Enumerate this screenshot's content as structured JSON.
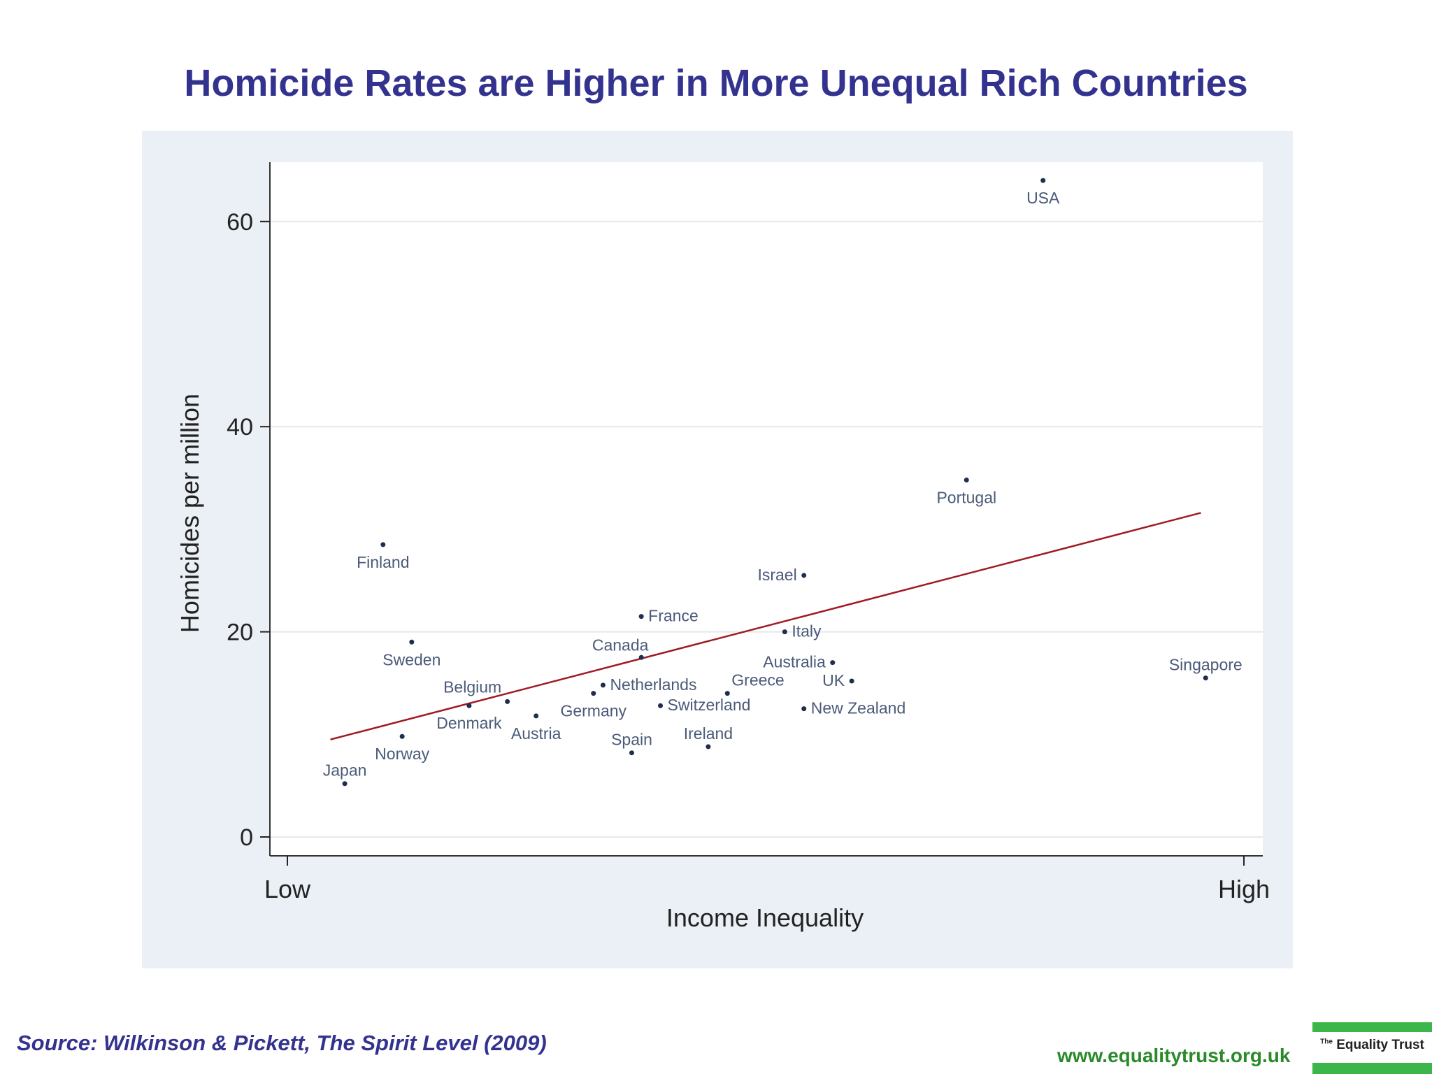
{
  "title": "Homicide Rates are Higher in More Unequal Rich Countries",
  "source": "Source: Wilkinson & Pickett, The Spirit Level (2009)",
  "footer": {
    "url": "www.equalitytrust.org.uk",
    "logo_prefix": "The",
    "logo_name": "Equality Trust"
  },
  "colors": {
    "title": "#33338f",
    "url": "#2a8a2a",
    "logo_green": "#3cb54a",
    "fitted_line": "#a01b24",
    "point": "#1f2d4f",
    "country_label": "#4a5a78",
    "plot_background": "#eaf0f5"
  },
  "chart_data": {
    "type": "scatter",
    "xlabel": "Income Inequality",
    "ylabel": "Homicides per million",
    "x_tick_labels": [
      "Low",
      "High"
    ],
    "xlim": [
      "Low",
      "High"
    ],
    "y_ticks": [
      0,
      20,
      40,
      60
    ],
    "ylim": [
      0,
      60
    ],
    "grid": "horizontal",
    "trendline": {
      "y_at_start": 9.5,
      "y_at_end": 31.6
    },
    "points": [
      {
        "label": "USA",
        "x": 0.79,
        "y": 64.0
      },
      {
        "label": "Portugal",
        "x": 0.71,
        "y": 34.8
      },
      {
        "label": "Finland",
        "x": 0.1,
        "y": 28.5
      },
      {
        "label": "Israel",
        "x": 0.54,
        "y": 25.5
      },
      {
        "label": "France",
        "x": 0.37,
        "y": 21.5
      },
      {
        "label": "Italy",
        "x": 0.52,
        "y": 20.0
      },
      {
        "label": "Sweden",
        "x": 0.13,
        "y": 19.0
      },
      {
        "label": "Canada",
        "x": 0.37,
        "y": 17.5
      },
      {
        "label": "Australia",
        "x": 0.57,
        "y": 17.0
      },
      {
        "label": "UK",
        "x": 0.59,
        "y": 15.2
      },
      {
        "label": "Singapore",
        "x": 0.96,
        "y": 15.5
      },
      {
        "label": "Netherlands",
        "x": 0.33,
        "y": 14.8
      },
      {
        "label": "Greece",
        "x": 0.46,
        "y": 14.0
      },
      {
        "label": "Germany",
        "x": 0.32,
        "y": 14.0
      },
      {
        "label": "Belgium",
        "x": 0.23,
        "y": 13.2
      },
      {
        "label": "Switzerland",
        "x": 0.39,
        "y": 12.8
      },
      {
        "label": "Denmark",
        "x": 0.19,
        "y": 12.8
      },
      {
        "label": "New Zealand",
        "x": 0.54,
        "y": 12.5
      },
      {
        "label": "Austria",
        "x": 0.26,
        "y": 11.8
      },
      {
        "label": "Norway",
        "x": 0.12,
        "y": 9.8
      },
      {
        "label": "Ireland",
        "x": 0.44,
        "y": 8.8
      },
      {
        "label": "Spain",
        "x": 0.36,
        "y": 8.2
      },
      {
        "label": "Japan",
        "x": 0.06,
        "y": 5.2
      }
    ]
  }
}
